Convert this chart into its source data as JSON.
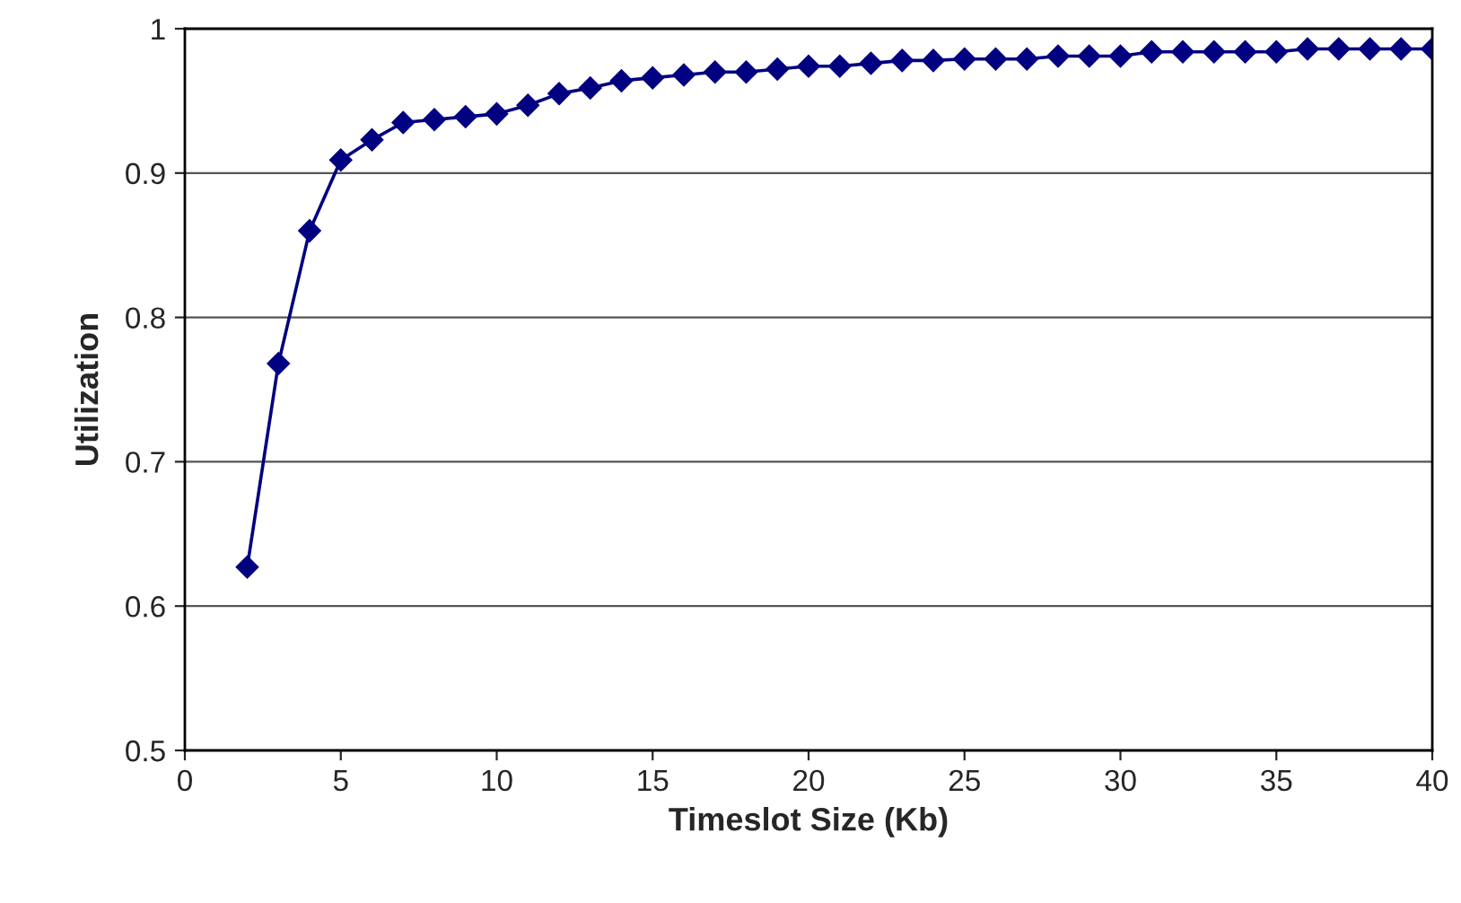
{
  "chart_data": {
    "type": "line",
    "xlabel": "Timeslot Size (Kb)",
    "ylabel": "Utilization",
    "x": [
      2,
      3,
      4,
      5,
      6,
      7,
      8,
      9,
      10,
      11,
      12,
      13,
      14,
      15,
      16,
      17,
      18,
      19,
      20,
      21,
      22,
      23,
      24,
      25,
      26,
      27,
      28,
      29,
      30,
      31,
      32,
      33,
      34,
      35,
      36,
      37,
      38,
      39,
      40
    ],
    "series": [
      {
        "color": "#000080",
        "values": [
          0.627,
          0.768,
          0.86,
          0.909,
          0.923,
          0.935,
          0.937,
          0.939,
          0.941,
          0.947,
          0.955,
          0.959,
          0.964,
          0.966,
          0.968,
          0.97,
          0.97,
          0.972,
          0.974,
          0.974,
          0.976,
          0.978,
          0.978,
          0.979,
          0.979,
          0.979,
          0.981,
          0.981,
          0.981,
          0.984,
          0.984,
          0.984,
          0.984,
          0.984,
          0.986,
          0.986,
          0.986,
          0.986,
          0.986
        ]
      }
    ],
    "xlim": [
      0,
      40
    ],
    "xticks": [
      0,
      5,
      10,
      15,
      20,
      25,
      30,
      35,
      40
    ],
    "ylim": [
      0.5,
      1
    ],
    "yticks": [
      0.5,
      0.6,
      0.7,
      0.8,
      0.9,
      1
    ],
    "grid": "y",
    "marker": "diamond",
    "line_style": "solid",
    "legend": false
  }
}
